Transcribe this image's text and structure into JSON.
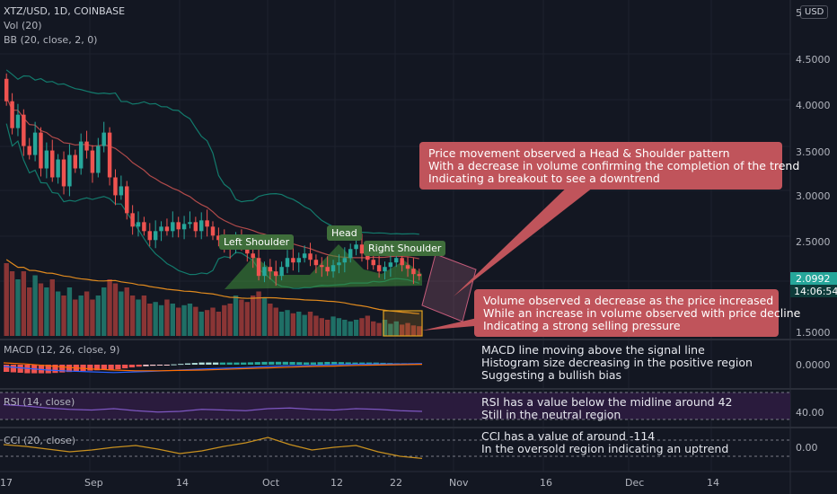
{
  "header": {
    "symbol": "XTZ/USD, 1D, COINBASE",
    "vol": "Vol (20)",
    "bb": "BB (20, close, 2, 0)",
    "currency": "USD"
  },
  "price_axis": {
    "ticks": [
      "5",
      "4.5000",
      "4.0000",
      "3.5000",
      "3.0000",
      "2.5000",
      "1.5000"
    ],
    "last_price": "2.0992",
    "countdown": "14:06:54",
    "last_price_color": "#26a69a",
    "countdown_color": "#0e3b3a"
  },
  "panes": {
    "macd": {
      "label": "MACD (12, 26, close, 9)",
      "tick": "0.0000"
    },
    "rsi": {
      "label": "RSI (14, close)",
      "tick": "40.00"
    },
    "cci": {
      "label": "CCI (20, close)",
      "tick": "0.00"
    }
  },
  "time_axis": [
    "17",
    "Sep",
    "14",
    "Oct",
    "12",
    "22",
    "Nov",
    "16",
    "Dec",
    "14"
  ],
  "patterns": {
    "left": "Left Shoulder",
    "head": "Head",
    "right": "Right Shoulder"
  },
  "notes": {
    "price": [
      "Price movement observed a Head & Shoulder pattern",
      "With a decrease in volume confirming the completion of the trend",
      "Indicating a breakout to see a downtrend"
    ],
    "volume": [
      "Volume observed a decrease as the price increased",
      "While an increase in volume observed with price decline",
      "Indicating a strong selling pressure"
    ],
    "macd": [
      "MACD line moving above the signal line",
      "Histogram size decreasing in the positive region",
      "Suggesting a bullish bias"
    ],
    "rsi": [
      "RSI has a value below the midline around 42",
      "Still in the neutral region"
    ],
    "cci": [
      "CCI has a value of around -114",
      "In the oversold region indicating an uptrend"
    ]
  },
  "colors": {
    "up": "#26a69a",
    "down": "#ef5350",
    "note_box": "#c0545b",
    "pattern_fill": "#3f8f3a",
    "rsi_band": "#2a1b3d",
    "bb_basis": "#b04a4a",
    "bb_band": "#137a6c"
  },
  "chart_data": [
    {
      "type": "candlestick",
      "title": "XTZ/USD, 1D, COINBASE",
      "ylim": [
        1.45,
        5.1
      ],
      "ticks": [
        5,
        4.5,
        4.0,
        3.5,
        3.0,
        2.5,
        1.5
      ],
      "close": [
        4.05,
        3.75,
        3.9,
        3.55,
        3.45,
        3.7,
        3.3,
        3.5,
        3.2,
        3.4,
        3.1,
        3.45,
        3.3,
        3.6,
        3.5,
        3.25,
        3.55,
        3.7,
        3.2,
        3.0,
        3.1,
        2.8,
        2.65,
        2.7,
        2.6,
        2.5,
        2.6,
        2.65,
        2.6,
        2.7,
        2.62,
        2.68,
        2.7,
        2.6,
        2.72,
        2.65,
        2.55,
        2.5,
        2.45,
        2.4,
        2.5,
        2.45,
        2.35,
        2.3,
        2.1,
        2.2,
        2.15,
        2.1,
        2.2,
        2.3,
        2.25,
        2.3,
        2.35,
        2.28,
        2.22,
        2.2,
        2.15,
        2.22,
        2.25,
        2.3,
        2.4,
        2.45,
        2.35,
        2.28,
        2.22,
        2.15,
        2.2,
        2.25,
        2.3,
        2.22,
        2.18,
        2.12,
        2.0992
      ]
    },
    {
      "type": "bar",
      "title": "Vol (20)",
      "values": [
        0.9,
        0.8,
        0.7,
        0.8,
        0.6,
        0.75,
        0.65,
        0.6,
        0.7,
        0.55,
        0.5,
        0.6,
        0.45,
        0.5,
        0.55,
        0.45,
        0.5,
        0.6,
        0.7,
        0.65,
        0.55,
        0.6,
        0.5,
        0.45,
        0.5,
        0.4,
        0.42,
        0.38,
        0.45,
        0.4,
        0.35,
        0.38,
        0.4,
        0.36,
        0.3,
        0.32,
        0.35,
        0.3,
        0.38,
        0.4,
        0.5,
        0.45,
        0.42,
        0.5,
        0.55,
        0.48,
        0.4,
        0.35,
        0.3,
        0.32,
        0.28,
        0.3,
        0.26,
        0.3,
        0.25,
        0.22,
        0.2,
        0.24,
        0.22,
        0.2,
        0.18,
        0.2,
        0.22,
        0.25,
        0.18,
        0.16,
        0.2,
        0.15,
        0.18,
        0.14,
        0.16,
        0.13,
        0.12
      ]
    },
    {
      "type": "line",
      "title": "MACD (12, 26, close, 9)",
      "series": [
        {
          "values": [
            -0.05,
            -0.1,
            -0.15,
            -0.18,
            -0.2,
            -0.22,
            -0.2,
            -0.18,
            -0.15,
            -0.12,
            -0.1,
            -0.08,
            -0.05,
            -0.03,
            -0.02,
            0.0,
            0.01,
            0.02,
            0.02,
            0.03
          ]
        },
        {
          "values": [
            0.05,
            0.02,
            -0.03,
            -0.08,
            -0.12,
            -0.15,
            -0.17,
            -0.17,
            -0.16,
            -0.15,
            -0.13,
            -0.11,
            -0.09,
            -0.07,
            -0.05,
            -0.04,
            -0.02,
            -0.01,
            0.0,
            0.01
          ]
        }
      ]
    },
    {
      "type": "line",
      "title": "RSI (14, close)",
      "values": [
        52,
        50,
        47,
        45,
        44,
        46,
        43,
        41,
        42,
        45,
        44,
        43,
        46,
        47,
        45,
        44,
        46,
        45,
        43,
        42
      ]
    },
    {
      "type": "line",
      "title": "CCI (20, close)",
      "values": [
        40,
        20,
        -10,
        -40,
        -20,
        10,
        30,
        -10,
        -60,
        -30,
        20,
        60,
        120,
        40,
        -20,
        10,
        30,
        -40,
        -90,
        -114
      ]
    }
  ]
}
